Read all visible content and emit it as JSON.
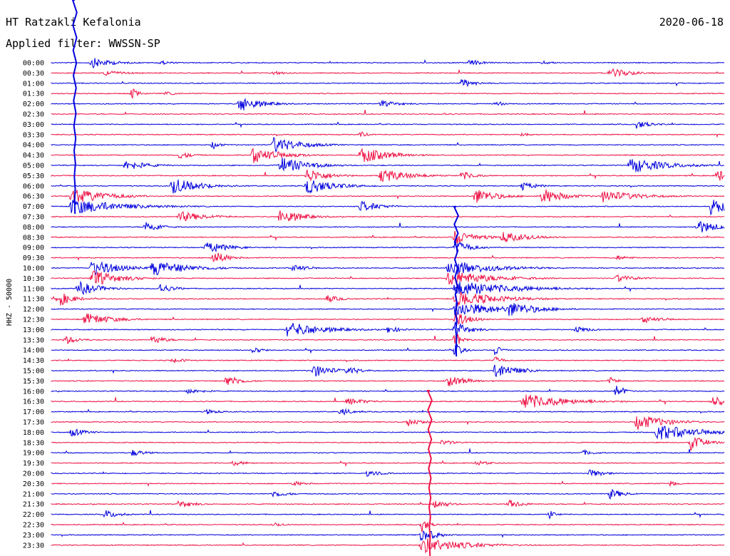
{
  "header": {
    "station": "HT Ratzakli Kefalonia",
    "date": "2020-06-18",
    "filter": "Applied filter: WWSSN-SP"
  },
  "chart_data": {
    "type": "line",
    "title": "HT Ratzakli Kefalonia",
    "subtitle": "Applied filter: WWSSN-SP",
    "date": "2020-06-18",
    "ylabel": "HHZ - 50000",
    "xlabel": "",
    "trace_minutes": 30,
    "grid": false,
    "colors": [
      "#0000dd",
      "#ee1144"
    ],
    "rows": [
      {
        "label": "00:00",
        "events": [
          {
            "t": 0.06,
            "amp": 0.6,
            "dur": 0.03
          },
          {
            "t": 0.16,
            "amp": 0.25,
            "dur": 0.02
          },
          {
            "t": 0.62,
            "amp": 0.4,
            "dur": 0.02
          },
          {
            "t": 0.73,
            "amp": 0.2,
            "dur": 0.02
          }
        ]
      },
      {
        "label": "00:30",
        "events": [
          {
            "t": 0.08,
            "amp": 0.3,
            "dur": 0.03
          },
          {
            "t": 0.33,
            "amp": 0.25,
            "dur": 0.02
          },
          {
            "t": 0.83,
            "amp": 0.6,
            "dur": 0.03
          }
        ]
      },
      {
        "label": "01:00",
        "events": [
          {
            "t": 0.61,
            "amp": 0.5,
            "dur": 0.02
          }
        ]
      },
      {
        "label": "01:30",
        "events": [
          {
            "t": 0.12,
            "amp": 0.6,
            "dur": 0.01
          },
          {
            "t": 0.17,
            "amp": 0.2,
            "dur": 0.02
          }
        ]
      },
      {
        "label": "02:00",
        "events": [
          {
            "t": 0.28,
            "amp": 0.9,
            "dur": 0.03
          },
          {
            "t": 0.49,
            "amp": 0.35,
            "dur": 0.03
          },
          {
            "t": 0.66,
            "amp": 0.45,
            "dur": 0.01
          }
        ]
      },
      {
        "label": "02:30",
        "events": [
          {
            "t": 0.58,
            "amp": 0.15,
            "dur": 0.02
          }
        ]
      },
      {
        "label": "03:00",
        "events": [
          {
            "t": 0.87,
            "amp": 0.5,
            "dur": 0.02
          }
        ]
      },
      {
        "label": "03:30",
        "events": [
          {
            "t": 0.46,
            "amp": 0.35,
            "dur": 0.01
          },
          {
            "t": 0.7,
            "amp": 0.3,
            "dur": 0.01
          }
        ]
      },
      {
        "label": "04:00",
        "events": [
          {
            "t": 0.33,
            "amp": 0.9,
            "dur": 0.04
          },
          {
            "t": 0.24,
            "amp": 0.5,
            "dur": 0.01
          }
        ]
      },
      {
        "label": "04:30",
        "events": [
          {
            "t": 0.3,
            "amp": 0.9,
            "dur": 0.04
          },
          {
            "t": 0.46,
            "amp": 0.9,
            "dur": 0.04
          },
          {
            "t": 0.19,
            "amp": 0.4,
            "dur": 0.02
          }
        ]
      },
      {
        "label": "05:00",
        "events": [
          {
            "t": 0.11,
            "amp": 0.6,
            "dur": 0.03
          },
          {
            "t": 0.34,
            "amp": 0.9,
            "dur": 0.04
          },
          {
            "t": 0.86,
            "amp": 0.9,
            "dur": 0.05
          }
        ]
      },
      {
        "label": "05:30",
        "events": [
          {
            "t": 0.38,
            "amp": 0.8,
            "dur": 0.03
          },
          {
            "t": 0.49,
            "amp": 0.8,
            "dur": 0.04
          },
          {
            "t": 0.61,
            "amp": 0.5,
            "dur": 0.02
          },
          {
            "t": 0.99,
            "amp": 0.9,
            "dur": 0.01
          }
        ]
      },
      {
        "label": "06:00",
        "events": [
          {
            "t": 0.18,
            "amp": 0.9,
            "dur": 0.04
          },
          {
            "t": 0.38,
            "amp": 0.9,
            "dur": 0.04
          },
          {
            "t": 0.7,
            "amp": 0.5,
            "dur": 0.02
          }
        ]
      },
      {
        "label": "06:30",
        "events": [
          {
            "t": 0.03,
            "amp": 0.9,
            "dur": 0.05
          },
          {
            "t": 0.63,
            "amp": 0.9,
            "dur": 0.03
          },
          {
            "t": 0.73,
            "amp": 0.9,
            "dur": 0.03
          },
          {
            "t": 0.82,
            "amp": 0.7,
            "dur": 0.05
          }
        ]
      },
      {
        "label": "07:00",
        "events": [
          {
            "t": 0.03,
            "amp": 0.9,
            "dur": 0.07
          },
          {
            "t": 0.46,
            "amp": 0.6,
            "dur": 0.03
          },
          {
            "t": 0.98,
            "amp": 0.9,
            "dur": 0.03
          }
        ]
      },
      {
        "label": "07:30",
        "events": [
          {
            "t": 0.19,
            "amp": 0.6,
            "dur": 0.04
          },
          {
            "t": 0.34,
            "amp": 0.9,
            "dur": 0.03
          }
        ]
      },
      {
        "label": "08:00",
        "events": [
          {
            "t": 0.14,
            "amp": 0.7,
            "dur": 0.02
          },
          {
            "t": 0.96,
            "amp": 0.8,
            "dur": 0.03
          }
        ]
      },
      {
        "label": "08:30",
        "events": [
          {
            "t": 0.6,
            "amp": 0.9,
            "dur": 0.03
          },
          {
            "t": 0.67,
            "amp": 0.6,
            "dur": 0.04
          }
        ]
      },
      {
        "label": "09:00",
        "events": [
          {
            "t": 0.23,
            "amp": 0.7,
            "dur": 0.03
          },
          {
            "t": 0.6,
            "amp": 0.9,
            "dur": 0.02
          }
        ]
      },
      {
        "label": "09:30",
        "events": [
          {
            "t": 0.24,
            "amp": 0.8,
            "dur": 0.02
          },
          {
            "t": 0.84,
            "amp": 0.3,
            "dur": 0.02
          }
        ]
      },
      {
        "label": "10:00",
        "events": [
          {
            "t": 0.06,
            "amp": 0.9,
            "dur": 0.04
          },
          {
            "t": 0.15,
            "amp": 0.9,
            "dur": 0.05
          },
          {
            "t": 0.59,
            "amp": 0.9,
            "dur": 0.06
          },
          {
            "t": 0.36,
            "amp": 0.5,
            "dur": 0.02
          }
        ]
      },
      {
        "label": "10:30",
        "events": [
          {
            "t": 0.06,
            "amp": 0.9,
            "dur": 0.04
          },
          {
            "t": 0.59,
            "amp": 0.9,
            "dur": 0.06
          },
          {
            "t": 0.84,
            "amp": 0.4,
            "dur": 0.03
          }
        ]
      },
      {
        "label": "11:00",
        "events": [
          {
            "t": 0.04,
            "amp": 0.8,
            "dur": 0.03
          },
          {
            "t": 0.16,
            "amp": 0.6,
            "dur": 0.02
          },
          {
            "t": 0.6,
            "amp": 0.9,
            "dur": 0.08
          }
        ]
      },
      {
        "label": "11:30",
        "events": [
          {
            "t": 0.01,
            "amp": 0.9,
            "dur": 0.02
          },
          {
            "t": 0.41,
            "amp": 0.4,
            "dur": 0.02
          },
          {
            "t": 0.6,
            "amp": 0.9,
            "dur": 0.06
          }
        ]
      },
      {
        "label": "12:00",
        "events": [
          {
            "t": 0.6,
            "amp": 0.9,
            "dur": 0.06
          },
          {
            "t": 0.68,
            "amp": 0.9,
            "dur": 0.04
          }
        ]
      },
      {
        "label": "12:30",
        "events": [
          {
            "t": 0.05,
            "amp": 0.7,
            "dur": 0.04
          },
          {
            "t": 0.6,
            "amp": 0.9,
            "dur": 0.02
          },
          {
            "t": 0.88,
            "amp": 0.4,
            "dur": 0.03
          }
        ]
      },
      {
        "label": "13:00",
        "events": [
          {
            "t": 0.35,
            "amp": 0.9,
            "dur": 0.05
          },
          {
            "t": 0.5,
            "amp": 0.4,
            "dur": 0.02
          },
          {
            "t": 0.6,
            "amp": 0.9,
            "dur": 0.02
          },
          {
            "t": 0.78,
            "amp": 0.4,
            "dur": 0.02
          }
        ]
      },
      {
        "label": "13:30",
        "events": [
          {
            "t": 0.02,
            "amp": 0.5,
            "dur": 0.02
          },
          {
            "t": 0.15,
            "amp": 0.5,
            "dur": 0.02
          },
          {
            "t": 0.6,
            "amp": 0.9,
            "dur": 0.01
          }
        ]
      },
      {
        "label": "14:00",
        "events": [
          {
            "t": 0.3,
            "amp": 0.6,
            "dur": 0.01
          },
          {
            "t": 0.6,
            "amp": 0.9,
            "dur": 0.01
          },
          {
            "t": 0.66,
            "amp": 0.7,
            "dur": 0.01
          }
        ]
      },
      {
        "label": "14:30",
        "events": [
          {
            "t": 0.18,
            "amp": 0.3,
            "dur": 0.02
          },
          {
            "t": 0.66,
            "amp": 0.5,
            "dur": 0.01
          }
        ]
      },
      {
        "label": "15:00",
        "events": [
          {
            "t": 0.39,
            "amp": 0.7,
            "dur": 0.03
          },
          {
            "t": 0.44,
            "amp": 0.5,
            "dur": 0.02
          },
          {
            "t": 0.66,
            "amp": 0.9,
            "dur": 0.03
          }
        ]
      },
      {
        "label": "15:30",
        "events": [
          {
            "t": 0.26,
            "amp": 0.7,
            "dur": 0.02
          },
          {
            "t": 0.59,
            "amp": 0.6,
            "dur": 0.03
          },
          {
            "t": 0.83,
            "amp": 0.5,
            "dur": 0.01
          }
        ]
      },
      {
        "label": "16:00",
        "events": [
          {
            "t": 0.2,
            "amp": 0.3,
            "dur": 0.03
          },
          {
            "t": 0.84,
            "amp": 0.9,
            "dur": 0.01
          }
        ]
      },
      {
        "label": "16:30",
        "events": [
          {
            "t": 0.44,
            "amp": 0.4,
            "dur": 0.03
          },
          {
            "t": 0.7,
            "amp": 0.9,
            "dur": 0.06
          },
          {
            "t": 0.98,
            "amp": 0.6,
            "dur": 0.03
          }
        ]
      },
      {
        "label": "17:00",
        "events": [
          {
            "t": 0.43,
            "amp": 0.4,
            "dur": 0.02
          },
          {
            "t": 0.23,
            "amp": 0.3,
            "dur": 0.02
          }
        ]
      },
      {
        "label": "17:30",
        "events": [
          {
            "t": 0.87,
            "amp": 0.9,
            "dur": 0.04
          },
          {
            "t": 0.53,
            "amp": 0.5,
            "dur": 0.02
          }
        ]
      },
      {
        "label": "18:00",
        "events": [
          {
            "t": 0.03,
            "amp": 0.5,
            "dur": 0.02
          },
          {
            "t": 0.9,
            "amp": 0.9,
            "dur": 0.06
          }
        ]
      },
      {
        "label": "18:30",
        "events": [
          {
            "t": 0.95,
            "amp": 0.9,
            "dur": 0.02
          },
          {
            "t": 0.58,
            "amp": 0.3,
            "dur": 0.02
          }
        ]
      },
      {
        "label": "19:00",
        "events": [
          {
            "t": 0.12,
            "amp": 0.4,
            "dur": 0.02
          },
          {
            "t": 0.79,
            "amp": 0.3,
            "dur": 0.02
          }
        ]
      },
      {
        "label": "19:30",
        "events": [
          {
            "t": 0.27,
            "amp": 0.3,
            "dur": 0.02
          },
          {
            "t": 0.63,
            "amp": 0.3,
            "dur": 0.02
          }
        ]
      },
      {
        "label": "20:00",
        "events": [
          {
            "t": 0.47,
            "amp": 0.4,
            "dur": 0.02
          },
          {
            "t": 0.8,
            "amp": 0.5,
            "dur": 0.02
          }
        ]
      },
      {
        "label": "20:30",
        "events": [
          {
            "t": 0.36,
            "amp": 0.3,
            "dur": 0.02
          },
          {
            "t": 0.92,
            "amp": 0.4,
            "dur": 0.01
          }
        ]
      },
      {
        "label": "21:00",
        "events": [
          {
            "t": 0.33,
            "amp": 0.4,
            "dur": 0.02
          },
          {
            "t": 0.83,
            "amp": 0.6,
            "dur": 0.02
          }
        ]
      },
      {
        "label": "21:30",
        "events": [
          {
            "t": 0.19,
            "amp": 0.5,
            "dur": 0.02
          },
          {
            "t": 0.57,
            "amp": 0.5,
            "dur": 0.02
          },
          {
            "t": 0.68,
            "amp": 0.5,
            "dur": 0.02
          }
        ]
      },
      {
        "label": "22:00",
        "events": [
          {
            "t": 0.08,
            "amp": 0.5,
            "dur": 0.02
          },
          {
            "t": 0.74,
            "amp": 0.5,
            "dur": 0.01
          }
        ]
      },
      {
        "label": "22:30",
        "events": [
          {
            "t": 0.55,
            "amp": 0.9,
            "dur": 0.01
          },
          {
            "t": 0.33,
            "amp": 0.2,
            "dur": 0.02
          }
        ]
      },
      {
        "label": "23:00",
        "events": [
          {
            "t": 0.55,
            "amp": 0.9,
            "dur": 0.02
          }
        ]
      },
      {
        "label": "23:30",
        "events": [
          {
            "t": 0.55,
            "amp": 0.9,
            "dur": 0.06
          }
        ]
      }
    ]
  }
}
